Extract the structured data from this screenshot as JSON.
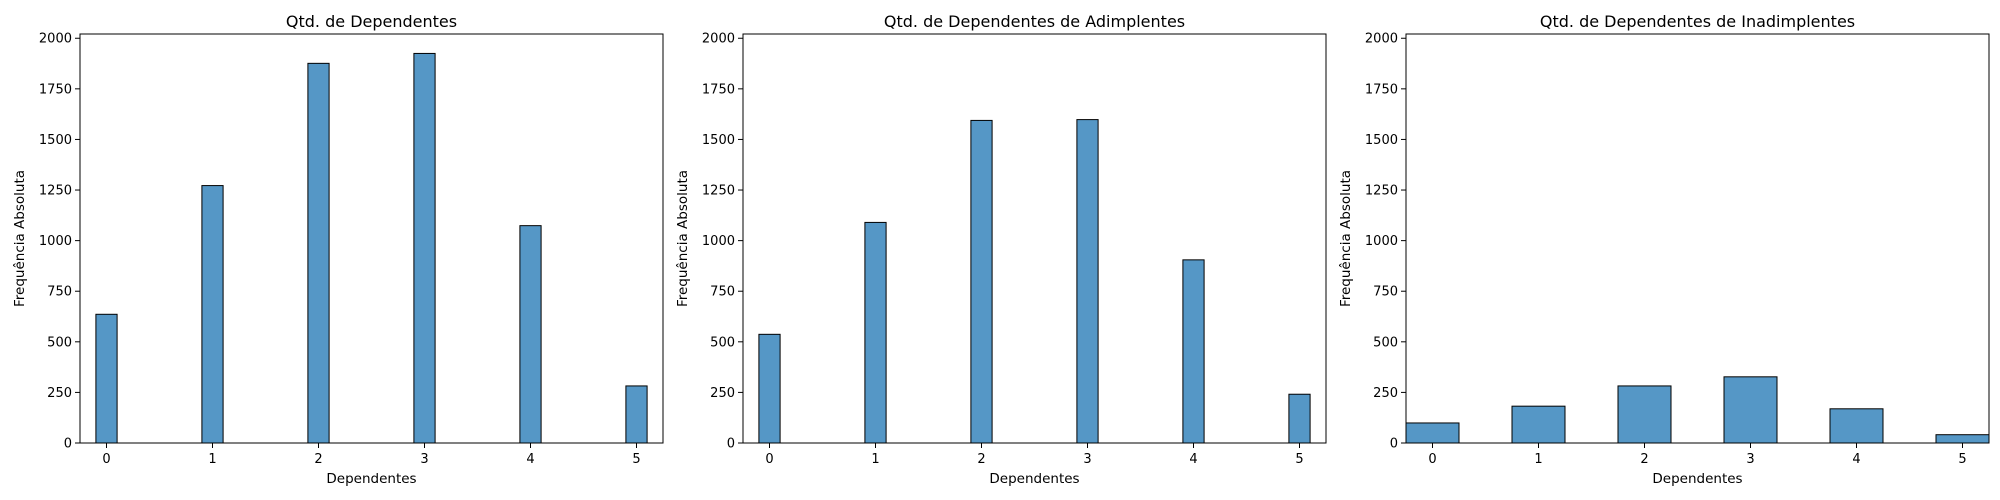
{
  "chart_data": [
    {
      "type": "bar",
      "title": "Qtd. de Dependentes",
      "xlabel": "Dependentes",
      "ylabel": "Frequência Absoluta",
      "categories": [
        0,
        1,
        2,
        3,
        4,
        5
      ],
      "values": [
        636,
        1272,
        1876,
        1925,
        1074,
        282
      ],
      "bin_width": 0.2,
      "xlim": [
        -0.25,
        5.25
      ],
      "ylim": [
        0,
        2021
      ],
      "xticks": [
        "0",
        "1",
        "2",
        "3",
        "4",
        "5"
      ],
      "yticks": [
        "0",
        "250",
        "500",
        "750",
        "1000",
        "1250",
        "1500",
        "1750",
        "2000"
      ],
      "color": "#5597c6",
      "grid": false
    },
    {
      "type": "bar",
      "title": "Qtd. de Dependentes de Adimplentes",
      "xlabel": "Dependentes",
      "ylabel": "Frequência Absoluta",
      "categories": [
        0,
        1,
        2,
        3,
        4,
        5
      ],
      "values": [
        537,
        1090,
        1594,
        1598,
        905,
        241
      ],
      "bin_width": 0.2,
      "xlim": [
        -0.25,
        5.25
      ],
      "ylim": [
        0,
        2021
      ],
      "xticks": [
        "0",
        "1",
        "2",
        "3",
        "4",
        "5"
      ],
      "yticks": [
        "0",
        "250",
        "500",
        "750",
        "1000",
        "1250",
        "1500",
        "1750",
        "2000"
      ],
      "color": "#5597c6",
      "grid": false
    },
    {
      "type": "bar",
      "title": "Qtd. de Dependentes de Inadimplentes",
      "xlabel": "Dependentes",
      "ylabel": "Frequência Absoluta",
      "categories": [
        0,
        1,
        2,
        3,
        4,
        5
      ],
      "values": [
        99,
        182,
        282,
        327,
        169,
        41
      ],
      "bin_width": 0.5,
      "xlim": [
        -0.25,
        5.25
      ],
      "ylim": [
        0,
        2021
      ],
      "xticks": [
        "0",
        "1",
        "2",
        "3",
        "4",
        "5"
      ],
      "yticks": [
        "0",
        "250",
        "500",
        "750",
        "1000",
        "1250",
        "1500",
        "1750",
        "2000"
      ],
      "color": "#5597c6",
      "grid": false
    }
  ]
}
